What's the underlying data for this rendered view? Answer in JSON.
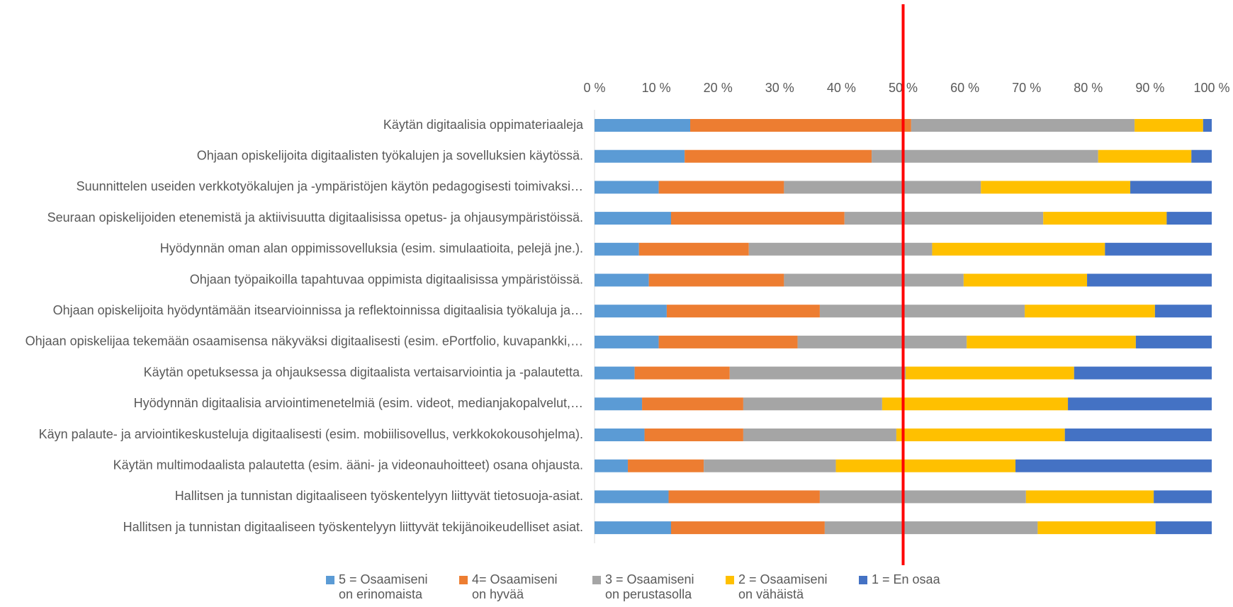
{
  "chart_data": {
    "type": "stacked_bar_horizontal",
    "categories": [
      "Käytän digitaalisia oppimateriaaleja",
      "Ohjaan opiskelijoita digitaalisten työkalujen ja sovelluksien käytössä.",
      "Suunnittelen useiden verkkotyökalujen ja -ympäristöjen käytön pedagogisesti toimivaksi…",
      "Seuraan opiskelijoiden etenemistä ja aktiivisuutta digitaalisissa opetus- ja ohjausympäristöissä.",
      "Hyödynnän oman alan oppimissovelluksia (esim. simulaatioita, pelejä jne.).",
      "Ohjaan työpaikoilla tapahtuvaa oppimista digitaalisissa ympäristöissä.",
      "Ohjaan opiskelijoita hyödyntämään itsearvioinnissa ja reflektoinnissa  digitaalisia työkaluja ja…",
      "Ohjaan opiskelijaa tekemään osaamisensa näkyväksi digitaalisesti (esim. ePortfolio, kuvapankki,…",
      "Käytän opetuksessa ja ohjauksessa digitaalista vertaisarviointia ja -palautetta.",
      "Hyödynnän digitaalisia arviointimenetelmiä (esim. videot, medianjakopalvelut,…",
      "Käyn palaute- ja arviointikeskusteluja digitaalisesti (esim. mobiilisovellus, verkkokokousohjelma).",
      "Käytän multimodaalista palautetta (esim. ääni- ja videonauhoitteet) osana ohjausta.",
      "Hallitsen ja tunnistan digitaaliseen työskentelyyn liittyvät tietosuoja-asiat.",
      "Hallitsen ja tunnistan digitaaliseen työskentelyyn liittyvät tekijänoikeudelliset asiat."
    ],
    "series": [
      {
        "name": "5 = Osaamiseni on erinomaista",
        "color": "#5b9bd5",
        "values": [
          15.5,
          14.6,
          10.4,
          12.4,
          7.2,
          8.8,
          11.7,
          10.4,
          6.5,
          7.7,
          8.1,
          5.4,
          12.0,
          12.4
        ]
      },
      {
        "name": "4= Osaamiseni on hyvää",
        "color": "#ed7d31",
        "values": [
          35.8,
          30.3,
          20.3,
          28.1,
          17.8,
          21.9,
          24.8,
          22.5,
          15.4,
          16.4,
          16.0,
          12.3,
          24.5,
          24.9
        ]
      },
      {
        "name": "3 = Osaamiseni on perustasolla",
        "color": "#a5a5a5",
        "values": [
          36.2,
          36.7,
          31.9,
          32.2,
          29.7,
          29.1,
          33.2,
          27.4,
          28.5,
          22.5,
          24.8,
          21.4,
          33.4,
          34.5
        ]
      },
      {
        "name": "2 = Osaamiseni on vähäistä",
        "color": "#ffc000",
        "values": [
          11.1,
          15.1,
          24.2,
          20.0,
          28.0,
          20.0,
          21.1,
          27.4,
          27.3,
          30.1,
          27.3,
          29.1,
          20.7,
          19.1
        ]
      },
      {
        "name": "1 = En osaa",
        "color": "#4472c4",
        "values": [
          1.4,
          3.3,
          13.2,
          7.3,
          17.3,
          20.2,
          9.2,
          12.3,
          22.3,
          23.3,
          23.8,
          31.8,
          9.4,
          9.1
        ]
      }
    ],
    "xlim": [
      0,
      100
    ],
    "xticks": [
      {
        "value": 0,
        "label": "0 %"
      },
      {
        "value": 10,
        "label": "10 %"
      },
      {
        "value": 20,
        "label": "20 %"
      },
      {
        "value": 30,
        "label": "30 %"
      },
      {
        "value": 40,
        "label": "40 %"
      },
      {
        "value": 50,
        "label": "50 %"
      },
      {
        "value": 60,
        "label": "60 %"
      },
      {
        "value": 70,
        "label": "70 %"
      },
      {
        "value": 80,
        "label": "80 %"
      },
      {
        "value": 90,
        "label": "90 %"
      },
      {
        "value": 100,
        "label": "100 %"
      }
    ],
    "reference_line": {
      "value": 50,
      "color": "#ff0000"
    },
    "legend": "bottom"
  }
}
